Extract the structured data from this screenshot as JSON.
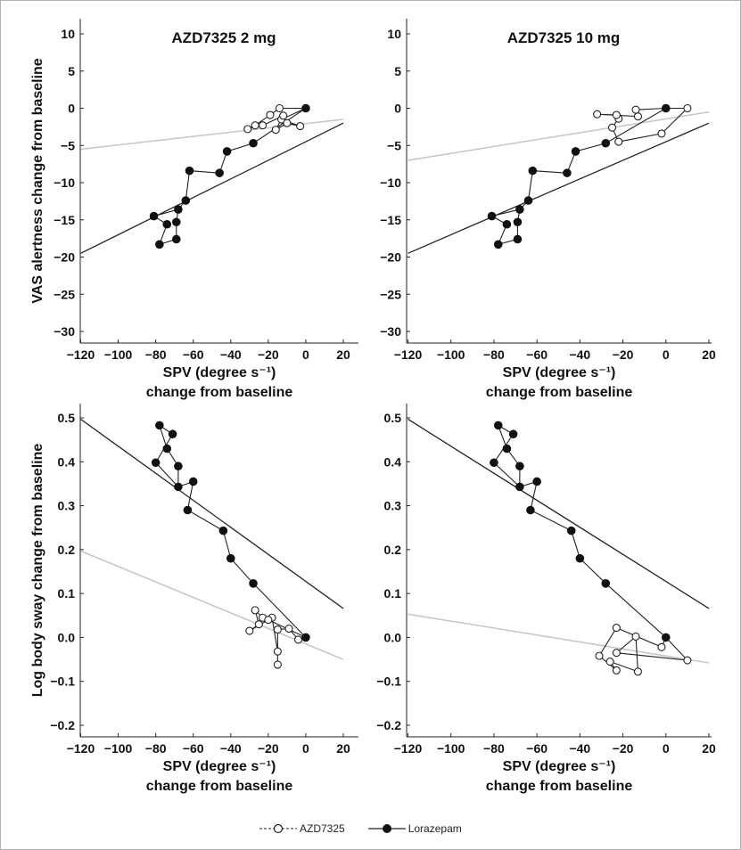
{
  "chart_data": [
    {
      "type": "scatter",
      "title": "AZD7325 2 mg",
      "xlabel": "SPV (degree s⁻¹)",
      "xlabel2": "change from baseline",
      "ylabel": "VAS alertness change from baseline",
      "xlim": [
        -120,
        20
      ],
      "ylim": [
        -30,
        10
      ],
      "xticks": [
        -120,
        -100,
        -80,
        -60,
        -40,
        -20,
        0,
        20
      ],
      "yticks": [
        -30,
        -25,
        -20,
        -15,
        -10,
        -5,
        0,
        5,
        10
      ],
      "series": [
        {
          "name": "AZD7325",
          "marker": "open-circle",
          "line_color": "#c8c8c8",
          "points": [
            [
              0,
              0
            ],
            [
              -13,
              -1.5
            ],
            [
              -3,
              -2.4
            ],
            [
              -10,
              -2
            ],
            [
              -16,
              -2.9
            ],
            [
              -12,
              -1
            ],
            [
              -23,
              -2.3
            ],
            [
              -31,
              -2.8
            ],
            [
              -27,
              -2.3
            ],
            [
              -19,
              -0.9
            ],
            [
              -14,
              0
            ],
            [
              0,
              0
            ]
          ],
          "fit": [
            [
              -120,
              -5.5
            ],
            [
              20,
              -1.5
            ]
          ]
        },
        {
          "name": "Lorazepam",
          "marker": "filled-circle",
          "line_color": "#222222",
          "points": [
            [
              0,
              0
            ],
            [
              -28,
              -4.7
            ],
            [
              -42,
              -5.8
            ],
            [
              -46,
              -8.7
            ],
            [
              -62,
              -8.4
            ],
            [
              -64,
              -12.4
            ],
            [
              -68,
              -13.6
            ],
            [
              -69,
              -15.3
            ],
            [
              -69,
              -17.6
            ],
            [
              -78,
              -18.3
            ],
            [
              -74,
              -15.6
            ],
            [
              -81,
              -14.5
            ],
            [
              -68,
              -13.6
            ]
          ],
          "fit": [
            [
              -120,
              -19.5
            ],
            [
              20,
              -2
            ]
          ]
        }
      ]
    },
    {
      "type": "scatter",
      "title": "AZD7325 10 mg",
      "xlabel": "SPV (degree s⁻¹)",
      "xlabel2": "change from baseline",
      "ylabel": "",
      "xlim": [
        -120,
        20
      ],
      "ylim": [
        -30,
        10
      ],
      "xticks": [
        -120,
        -100,
        -80,
        -60,
        -40,
        -20,
        0,
        20
      ],
      "yticks": [
        -30,
        -25,
        -20,
        -15,
        -10,
        -5,
        0,
        5,
        10
      ],
      "series": [
        {
          "name": "AZD7325",
          "marker": "open-circle",
          "line_color": "#c8c8c8",
          "points": [
            [
              0,
              0
            ],
            [
              10,
              0
            ],
            [
              -2,
              -3.4
            ],
            [
              -22,
              -4.5
            ],
            [
              -25,
              -2.6
            ],
            [
              -22,
              -1.4
            ],
            [
              -23,
              -0.9
            ],
            [
              -32,
              -0.8
            ],
            [
              -13,
              -1.1
            ],
            [
              -14,
              -0.2
            ],
            [
              0,
              0
            ]
          ],
          "fit": [
            [
              -120,
              -7
            ],
            [
              20,
              -0.5
            ]
          ]
        },
        {
          "name": "Lorazepam",
          "marker": "filled-circle",
          "line_color": "#222222",
          "points": [
            [
              0,
              0
            ],
            [
              -28,
              -4.7
            ],
            [
              -42,
              -5.8
            ],
            [
              -46,
              -8.7
            ],
            [
              -62,
              -8.4
            ],
            [
              -64,
              -12.4
            ],
            [
              -68,
              -13.6
            ],
            [
              -69,
              -15.3
            ],
            [
              -69,
              -17.6
            ],
            [
              -78,
              -18.3
            ],
            [
              -74,
              -15.6
            ],
            [
              -81,
              -14.5
            ],
            [
              -68,
              -13.6
            ]
          ],
          "fit": [
            [
              -120,
              -19.5
            ],
            [
              20,
              -2
            ]
          ]
        }
      ]
    },
    {
      "type": "scatter",
      "title": "",
      "xlabel": "SPV (degree s⁻¹)",
      "xlabel2": "change from baseline",
      "ylabel": "Log body sway change from baseline",
      "xlim": [
        -120,
        20
      ],
      "ylim": [
        -0.2,
        0.5
      ],
      "xticks": [
        -120,
        -100,
        -80,
        -60,
        -40,
        -20,
        0,
        20
      ],
      "yticks": [
        -0.2,
        -0.1,
        0.0,
        0.1,
        0.2,
        0.3,
        0.4,
        0.5
      ],
      "series": [
        {
          "name": "AZD7325",
          "marker": "open-circle",
          "line_color": "#c8c8c8",
          "points": [
            [
              0,
              0
            ],
            [
              -4,
              -0.005
            ],
            [
              -9,
              0.02
            ],
            [
              -15,
              0.018
            ],
            [
              -15,
              -0.062
            ],
            [
              -15,
              -0.032
            ],
            [
              -18,
              0.045
            ],
            [
              -23,
              0.045
            ],
            [
              -27,
              0.062
            ],
            [
              -25,
              0.03
            ],
            [
              -30,
              0.015
            ],
            [
              -20,
              0.04
            ],
            [
              0,
              0
            ]
          ],
          "fit": [
            [
              -120,
              0.197
            ],
            [
              20,
              -0.05
            ]
          ]
        },
        {
          "name": "Lorazepam",
          "marker": "filled-circle",
          "line_color": "#222222",
          "points": [
            [
              0,
              0
            ],
            [
              -28,
              0.123
            ],
            [
              -40,
              0.18
            ],
            [
              -44,
              0.243
            ],
            [
              -63,
              0.29
            ],
            [
              -60,
              0.355
            ],
            [
              -68,
              0.343
            ],
            [
              -68,
              0.39
            ],
            [
              -74,
              0.43
            ],
            [
              -78,
              0.483
            ],
            [
              -71,
              0.463
            ],
            [
              -80,
              0.398
            ],
            [
              -68,
              0.343
            ]
          ],
          "fit": [
            [
              -120,
              0.497
            ],
            [
              20,
              0.066
            ]
          ]
        }
      ]
    },
    {
      "type": "scatter",
      "title": "",
      "xlabel": "SPV (degree s⁻¹)",
      "xlabel2": "change from baseline",
      "ylabel": "",
      "xlim": [
        -120,
        20
      ],
      "ylim": [
        -0.2,
        0.5
      ],
      "xticks": [
        -120,
        -100,
        -80,
        -60,
        -40,
        -20,
        0,
        20
      ],
      "yticks": [
        -0.2,
        -0.1,
        0.0,
        0.1,
        0.2,
        0.3,
        0.4,
        0.5
      ],
      "series": [
        {
          "name": "AZD7325",
          "marker": "open-circle",
          "line_color": "#c8c8c8",
          "points": [
            [
              0,
              0
            ],
            [
              -2,
              -0.022
            ],
            [
              -23,
              0.022
            ],
            [
              -31,
              -0.042
            ],
            [
              -23,
              -0.075
            ],
            [
              -26,
              -0.055
            ],
            [
              -13,
              -0.078
            ],
            [
              -14,
              0.002
            ],
            [
              -23,
              -0.035
            ],
            [
              10,
              -0.052
            ],
            [
              0,
              0
            ]
          ],
          "fit": [
            [
              -120,
              0.053
            ],
            [
              20,
              -0.058
            ]
          ]
        },
        {
          "name": "Lorazepam",
          "marker": "filled-circle",
          "line_color": "#222222",
          "points": [
            [
              0,
              0
            ],
            [
              -28,
              0.123
            ],
            [
              -40,
              0.18
            ],
            [
              -44,
              0.243
            ],
            [
              -63,
              0.29
            ],
            [
              -60,
              0.355
            ],
            [
              -68,
              0.343
            ],
            [
              -68,
              0.39
            ],
            [
              -74,
              0.43
            ],
            [
              -78,
              0.483
            ],
            [
              -71,
              0.463
            ],
            [
              -80,
              0.398
            ],
            [
              -68,
              0.343
            ]
          ],
          "fit": [
            [
              -120,
              0.497
            ],
            [
              20,
              0.066
            ]
          ]
        }
      ]
    }
  ],
  "legend": {
    "items": [
      {
        "label": "AZD7325",
        "marker": "open-circle",
        "line_style": "dashed"
      },
      {
        "label": "Lorazepam",
        "marker": "filled-circle",
        "line_style": "solid"
      }
    ],
    "placement": "bottom-center"
  },
  "colors": {
    "regression_azd": "#c8c8c8",
    "regression_lorazepam": "#222222",
    "markers": "#222222"
  }
}
